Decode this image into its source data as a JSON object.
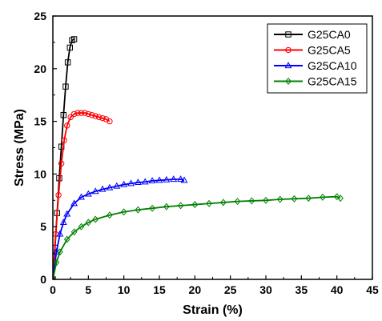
{
  "chart_data": {
    "type": "line",
    "xlabel": "Strain (%)",
    "ylabel": "Stress (MPa)",
    "xlim": [
      0,
      45
    ],
    "ylim": [
      0,
      25
    ],
    "xticks": [
      0,
      5,
      10,
      15,
      20,
      25,
      30,
      35,
      40,
      45
    ],
    "yticks": [
      0,
      5,
      10,
      15,
      20,
      25
    ],
    "grid": false,
    "legend_position": "top-right",
    "series": [
      {
        "name": "G25CA0",
        "color": "#000000",
        "marker": "square",
        "x": [
          0,
          0.3,
          0.6,
          0.9,
          1.2,
          1.5,
          1.8,
          2.1,
          2.4,
          2.7,
          3.0
        ],
        "y": [
          0,
          3.0,
          6.3,
          9.6,
          12.6,
          15.6,
          18.3,
          20.6,
          22.0,
          22.7,
          22.8
        ]
      },
      {
        "name": "G25CA5",
        "color": "#ff0000",
        "marker": "circle",
        "x": [
          0,
          0.4,
          0.8,
          1.2,
          1.6,
          2.0,
          2.5,
          3.0,
          3.5,
          4.0,
          4.5,
          5.0,
          5.5,
          6.0,
          6.5,
          7.0,
          7.5,
          8.0
        ],
        "y": [
          0,
          4.3,
          8.0,
          11.0,
          13.2,
          14.6,
          15.4,
          15.7,
          15.8,
          15.8,
          15.8,
          15.7,
          15.6,
          15.5,
          15.4,
          15.3,
          15.2,
          15.0
        ]
      },
      {
        "name": "G25CA10",
        "color": "#0000ff",
        "marker": "triangle",
        "x": [
          0,
          0.5,
          1,
          1.5,
          2,
          3,
          4,
          5,
          6,
          7,
          8,
          9,
          10,
          11,
          12,
          13,
          14,
          15,
          16,
          17,
          18,
          18.5
        ],
        "y": [
          0,
          2.6,
          4.3,
          5.4,
          6.2,
          7.2,
          7.8,
          8.1,
          8.35,
          8.55,
          8.7,
          8.85,
          9.0,
          9.1,
          9.2,
          9.25,
          9.35,
          9.4,
          9.45,
          9.5,
          9.5,
          9.4
        ]
      },
      {
        "name": "G25CA15",
        "color": "#008000",
        "marker": "diamond",
        "x": [
          0,
          0.5,
          1,
          2,
          3,
          4,
          5,
          6,
          8,
          10,
          12,
          14,
          16,
          18,
          20,
          22,
          24,
          26,
          28,
          30,
          32,
          34,
          36,
          38,
          40,
          40.5
        ],
        "y": [
          0,
          1.6,
          2.6,
          3.8,
          4.5,
          5.0,
          5.4,
          5.7,
          6.1,
          6.4,
          6.6,
          6.75,
          6.9,
          7.0,
          7.1,
          7.2,
          7.3,
          7.4,
          7.45,
          7.5,
          7.6,
          7.65,
          7.7,
          7.8,
          7.85,
          7.7
        ]
      }
    ]
  }
}
